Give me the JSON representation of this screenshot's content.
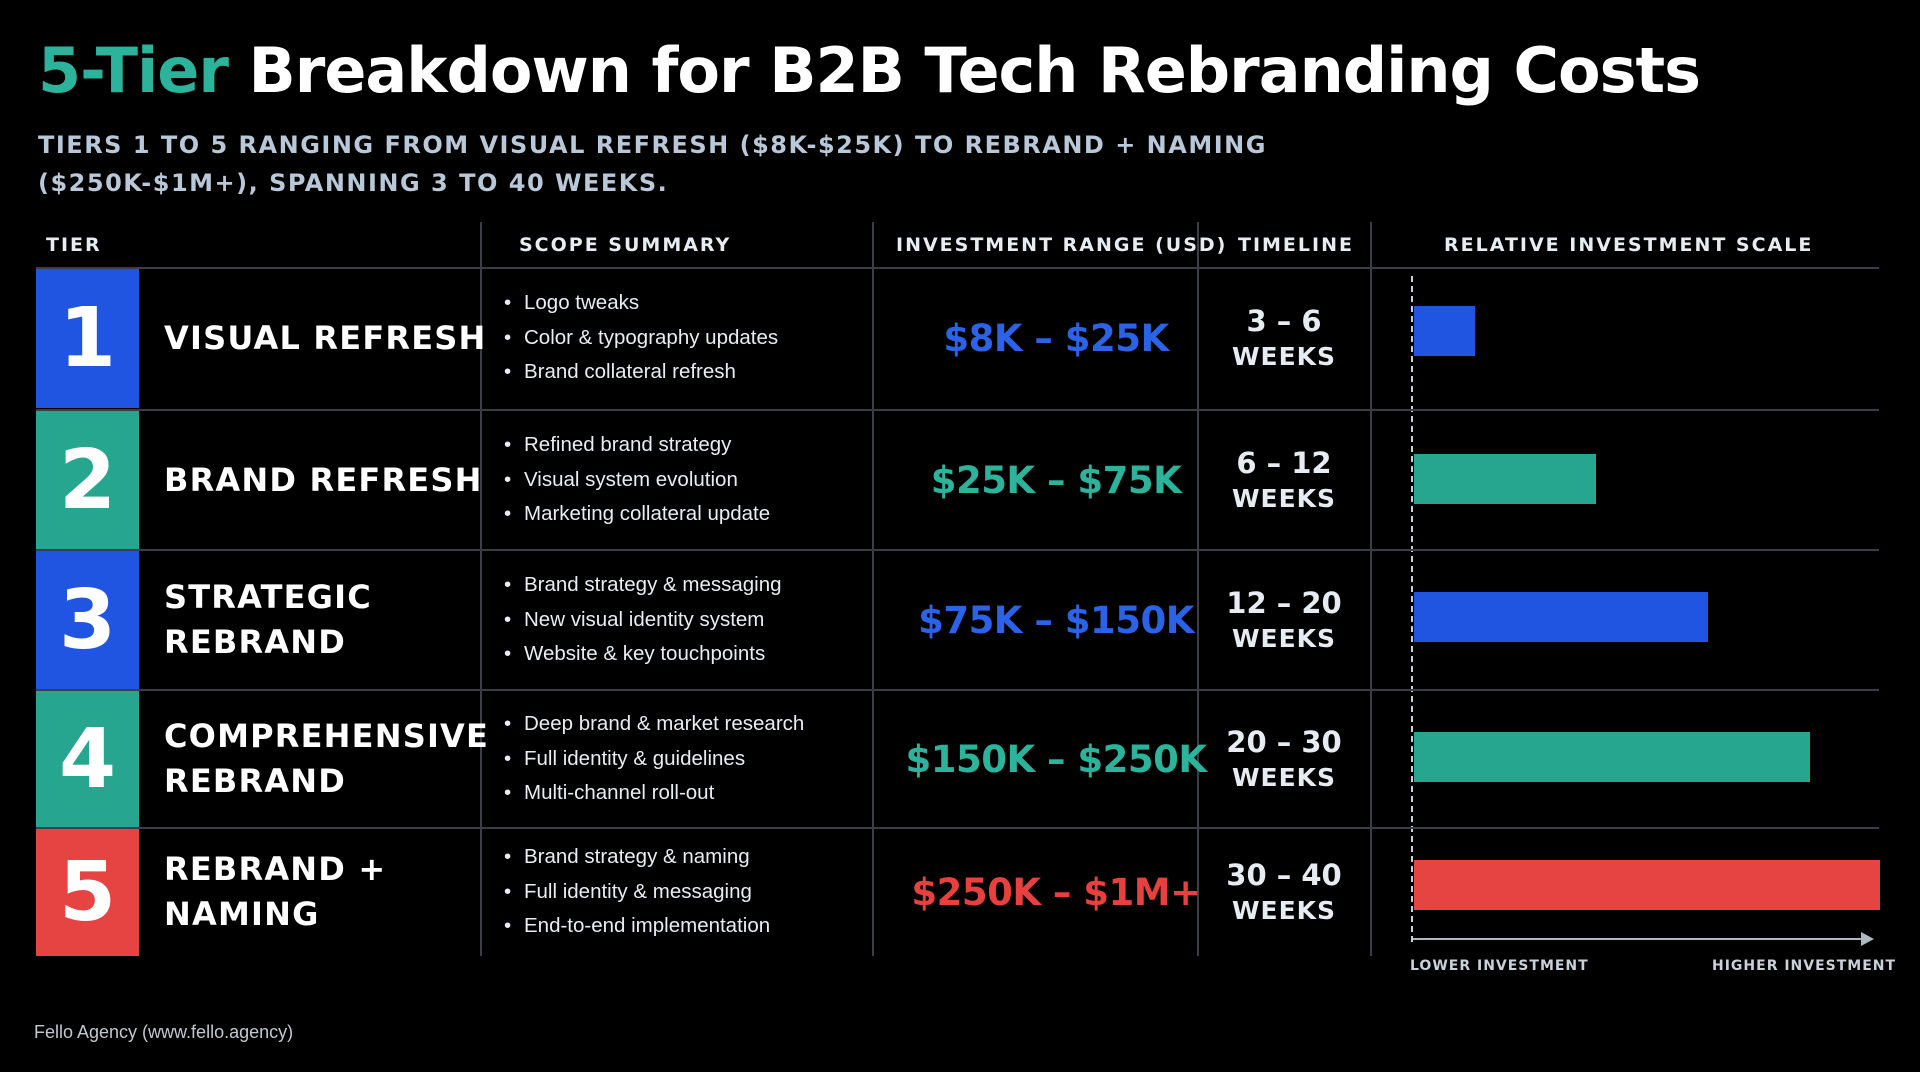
{
  "title": {
    "accent": "5-Tier",
    "rest": "Breakdown for B2B Tech Rebranding Costs"
  },
  "subtitle": "Tiers 1 to 5 ranging from visual refresh ($8K-$25K) to rebrand + naming ($250K-$1M+), spanning 3 to 40 weeks.",
  "headers": {
    "tier": "TIER",
    "scope": "SCOPE SUMMARY",
    "investment": "INVESTMENT RANGE (USD)",
    "timeline": "TIMELINE",
    "scale": "RELATIVE INVESTMENT SCALE"
  },
  "colors": {
    "blue": "#1f55e0",
    "teal": "#27a68f",
    "red": "#e64343",
    "accent": "#2bb39b"
  },
  "tiers": [
    {
      "num": "1",
      "name": [
        "VISUAL REFRESH"
      ],
      "scope": [
        "Logo tweaks",
        "Color & typography updates",
        "Brand collateral refresh"
      ],
      "range": "$8K – $25K",
      "timeline": {
        "value": "3 – 6",
        "unit": "WEEKS"
      },
      "color": "#1f55e0",
      "range_color": "#2a63e8"
    },
    {
      "num": "2",
      "name": [
        "BRAND REFRESH"
      ],
      "scope": [
        "Refined brand strategy",
        "Visual system evolution",
        "Marketing collateral update"
      ],
      "range": "$25K – $75K",
      "timeline": {
        "value": "6 – 12",
        "unit": "WEEKS"
      },
      "color": "#27a68f",
      "range_color": "#2bb39b"
    },
    {
      "num": "3",
      "name": [
        "STRATEGIC REBRAND"
      ],
      "scope": [
        "Brand strategy & messaging",
        "New visual identity system",
        "Website & key touchpoints"
      ],
      "range": "$75K – $150K",
      "timeline": {
        "value": "12 – 20",
        "unit": "WEEKS"
      },
      "color": "#1f55e0",
      "range_color": "#2a63e8"
    },
    {
      "num": "4",
      "name": [
        "COMPREHENSIVE",
        "REBRAND"
      ],
      "scope": [
        "Deep brand & market research",
        "Full identity & guidelines",
        "Multi-channel roll-out"
      ],
      "range": "$150K – $250K",
      "timeline": {
        "value": "20 – 30",
        "unit": "WEEKS"
      },
      "color": "#27a68f",
      "range_color": "#2bb39b"
    },
    {
      "num": "5",
      "name": [
        "REBRAND +",
        "NAMING"
      ],
      "scope": [
        "Brand strategy & naming",
        "Full identity & messaging",
        "End-to-end implementation"
      ],
      "range": "$250K – $1M+",
      "timeline": {
        "value": "30 – 40",
        "unit": "WEEKS"
      },
      "color": "#e64343",
      "range_color": "#e8403e"
    }
  ],
  "chart_data": {
    "type": "bar",
    "orientation": "horizontal",
    "title": "",
    "xlabel": "",
    "ylabel": "",
    "categories": [
      "1",
      "2",
      "3",
      "4",
      "5"
    ],
    "values": [
      0.13,
      0.39,
      0.63,
      0.85,
      1.0
    ],
    "value_unit": "relative investment (fraction of maximum)",
    "colors": [
      "#1f55e0",
      "#27a68f",
      "#1f55e0",
      "#27a68f",
      "#e64343"
    ],
    "axis_labels": {
      "low": "LOWER INVESTMENT",
      "high": "HIGHER INVESTMENT"
    },
    "grid": false
  },
  "footer": "Fello Agency (www.fello.agency)"
}
